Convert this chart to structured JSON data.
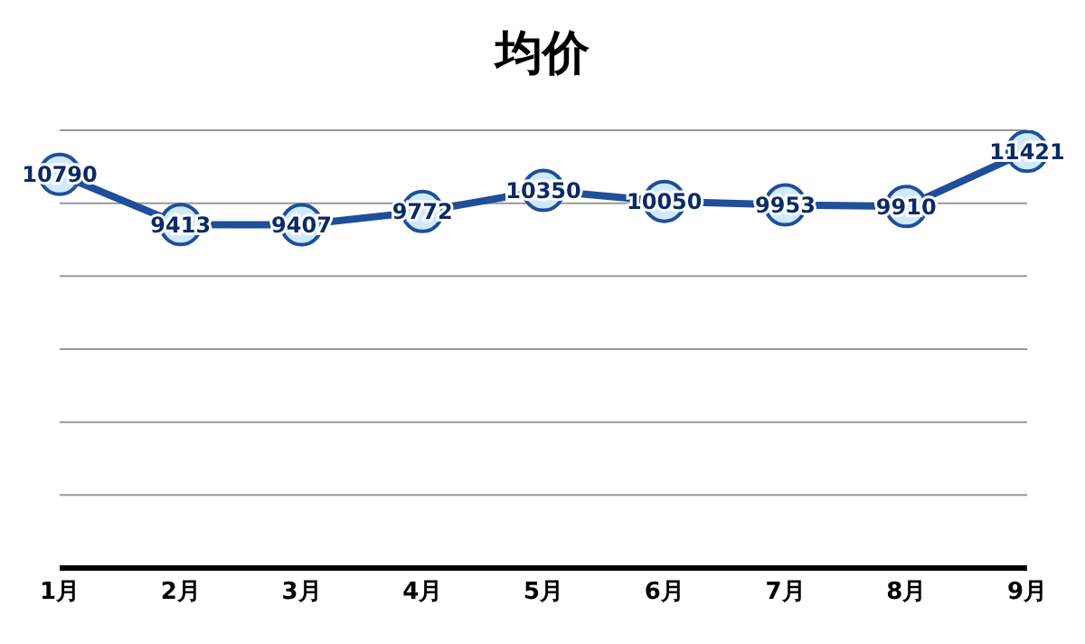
{
  "chart_data": {
    "type": "line",
    "title": "均价",
    "categories": [
      "1月",
      "2月",
      "3月",
      "4月",
      "5月",
      "6月",
      "7月",
      "8月",
      "9月"
    ],
    "series": [
      {
        "color": "#1f4e9a",
        "values": [
          10790,
          9413,
          9407,
          9772,
          10350,
          10050,
          9953,
          9910,
          11421
        ]
      }
    ],
    "ylim": [
      0,
      12000
    ],
    "tick_labels": "x",
    "grid": "y",
    "marker": "circle",
    "line_style": "solid",
    "data_labels": true
  }
}
